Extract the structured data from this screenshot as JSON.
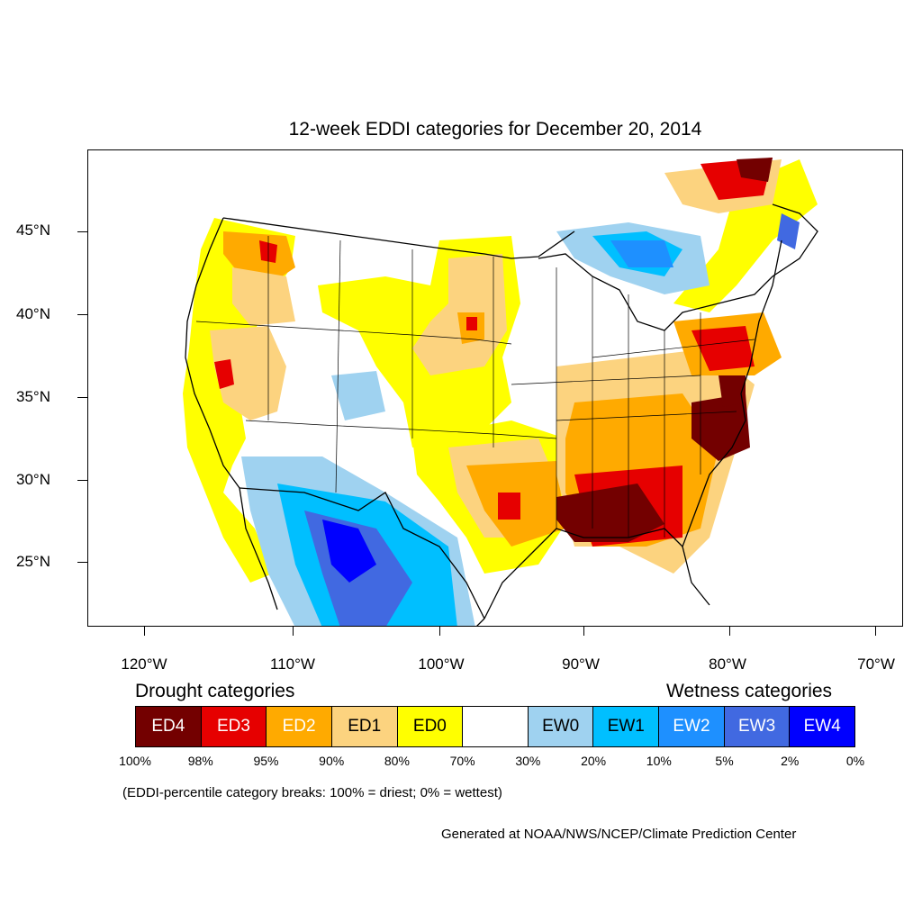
{
  "title": "12-week EDDI categories for December 20, 2014",
  "lat_labels": [
    "45°N",
    "40°N",
    "35°N",
    "30°N",
    "25°N"
  ],
  "lon_labels": [
    "120°W",
    "110°W",
    "100°W",
    "90°W",
    "80°W",
    "70°W"
  ],
  "legend": {
    "drought_heading": "Drought categories",
    "wetness_heading": "Wetness categories",
    "categories": [
      {
        "label": "ED4",
        "color": "#730000",
        "text_color": "#ffffff"
      },
      {
        "label": "ED3",
        "color": "#e60000",
        "text_color": "#ffffff"
      },
      {
        "label": "ED2",
        "color": "#ffaa00",
        "text_color": "#ffffff"
      },
      {
        "label": "ED1",
        "color": "#fcd37f",
        "text_color": "#000000"
      },
      {
        "label": "ED0",
        "color": "#ffff00",
        "text_color": "#000000"
      },
      {
        "label": "",
        "color": "#ffffff",
        "text_color": "#000000"
      },
      {
        "label": "EW0",
        "color": "#9fd2f0",
        "text_color": "#000000"
      },
      {
        "label": "EW1",
        "color": "#00bfff",
        "text_color": "#000000"
      },
      {
        "label": "EW2",
        "color": "#1e90ff",
        "text_color": "#ffffff"
      },
      {
        "label": "EW3",
        "color": "#4169e1",
        "text_color": "#ffffff"
      },
      {
        "label": "EW4",
        "color": "#0000ff",
        "text_color": "#ffffff"
      }
    ],
    "breaks": [
      "100%",
      "98%",
      "95%",
      "90%",
      "80%",
      "70%",
      "30%",
      "20%",
      "10%",
      "5%",
      "2%",
      "0%"
    ]
  },
  "note": "(EDDI-percentile category breaks: 100% = driest; 0% = wettest)",
  "credit": "Generated at NOAA/NWS/NCEP/Climate Prediction Center"
}
